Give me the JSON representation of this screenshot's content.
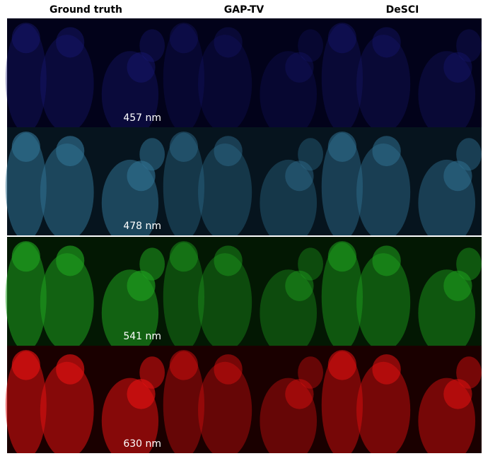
{
  "columns": [
    "Ground truth",
    "GAP-TV",
    "DeSCI"
  ],
  "rows": [
    {
      "label": "457 nm"
    },
    {
      "label": "478 nm"
    },
    {
      "label": "541 nm"
    },
    {
      "label": "630 nm"
    }
  ]
}
